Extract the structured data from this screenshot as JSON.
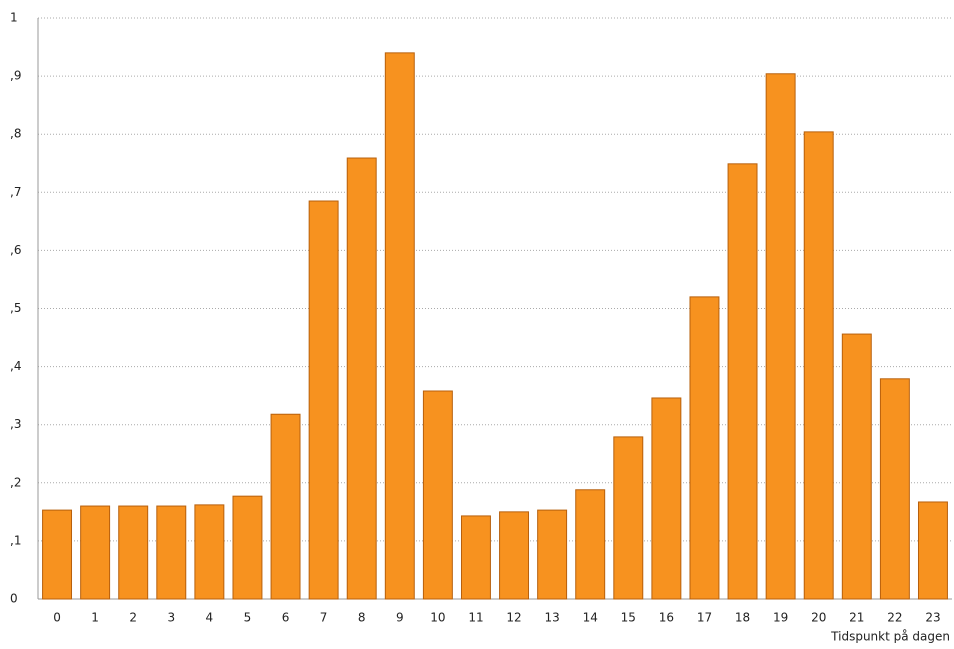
{
  "chart_data": {
    "type": "bar",
    "x_label": "Tidspunkt på dagen",
    "categories": [
      "0",
      "1",
      "2",
      "3",
      "4",
      "5",
      "6",
      "7",
      "8",
      "9",
      "10",
      "11",
      "12",
      "13",
      "14",
      "15",
      "16",
      "17",
      "18",
      "19",
      "20",
      "21",
      "22",
      "23"
    ],
    "values": [
      0.153,
      0.16,
      0.16,
      0.16,
      0.162,
      0.177,
      0.318,
      0.685,
      0.759,
      0.94,
      0.358,
      0.143,
      0.15,
      0.153,
      0.188,
      0.279,
      0.346,
      0.52,
      0.749,
      0.904,
      0.804,
      0.456,
      0.379,
      0.167
    ],
    "color": "#f7921f",
    "ylim": [
      0,
      1
    ],
    "yticks": [
      0,
      {
        "value": 0.1,
        "label": ",1"
      },
      {
        "value": 0.2,
        "label": ",2"
      },
      {
        "value": 0.3,
        "label": ",3"
      },
      {
        "value": 0.4,
        "label": ",4"
      },
      {
        "value": 0.5,
        "label": ",5"
      },
      {
        "value": 0.6,
        "label": ",6"
      },
      {
        "value": 0.7,
        "label": ",7"
      },
      {
        "value": 0.8,
        "label": ",8"
      },
      {
        "value": 0.9,
        "label": ",9"
      },
      1
    ],
    "grid": true
  }
}
